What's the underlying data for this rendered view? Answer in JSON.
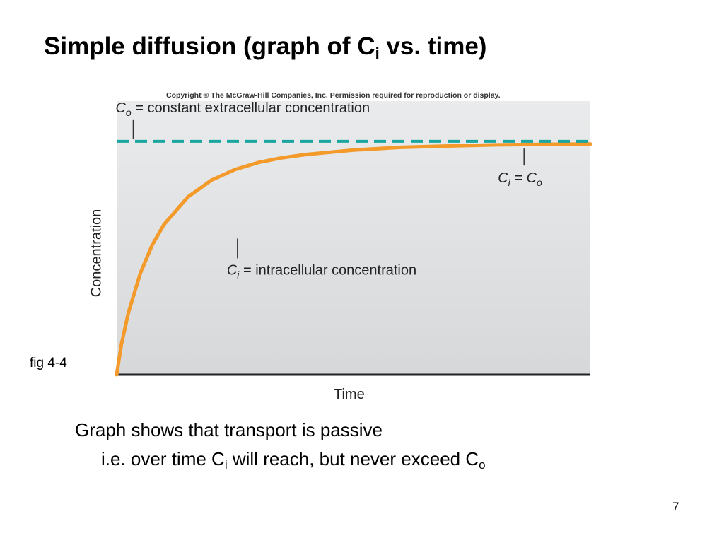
{
  "slide": {
    "title_main": "Simple diffusion (graph of C",
    "title_sub": "i",
    "title_end": " vs. time)",
    "copyright": "Copyright © The McGraw-Hill Companies, Inc. Permission required for reproduction or display.",
    "fig_label": "fig 4-4",
    "caption_line1": "Graph shows that transport is passive",
    "caption_line2_a": "i.e. over time C",
    "caption_line2_sub1": "i",
    "caption_line2_b": " will reach, but never exceed C",
    "caption_line2_sub2": "o",
    "page_number": "7"
  },
  "chart_data": {
    "type": "line",
    "title": "",
    "xlabel": "Time",
    "ylabel": "Concentration",
    "xlim": [
      0,
      10
    ],
    "ylim": [
      0,
      1.0
    ],
    "grid": false,
    "series": [
      {
        "name": "Ci",
        "style": "solid",
        "color": "#f39a2b",
        "x": [
          0,
          0.1,
          0.25,
          0.5,
          0.75,
          1,
          1.5,
          2,
          2.5,
          3,
          3.5,
          4,
          5,
          6,
          7,
          8,
          9,
          10
        ],
        "y": [
          0,
          0.111,
          0.228,
          0.371,
          0.474,
          0.549,
          0.649,
          0.711,
          0.75,
          0.776,
          0.793,
          0.805,
          0.821,
          0.831,
          0.836,
          0.84,
          0.842,
          0.843
        ]
      },
      {
        "name": "Co",
        "style": "dashed",
        "color": "#1aa6a0",
        "x": [
          0,
          10
        ],
        "y": [
          0.853,
          0.853
        ]
      }
    ],
    "annotations": [
      {
        "symbol": "C",
        "sub": "o",
        "text": "= constant extracellular concentration",
        "x": 0.35,
        "y": 0.853
      },
      {
        "symbol": "C",
        "sub": "i",
        "text": "= intracellular concentration",
        "x": 2.55,
        "y": 0.508
      },
      {
        "symbol": "C",
        "sub": "i",
        "text": "= C",
        "sub2": "o",
        "x": 8.6,
        "y": 0.842
      }
    ],
    "colors": {
      "plot_bg_top": "#e9ebec",
      "plot_bg_bottom": "#d6d8da",
      "axis": "#222222",
      "leader": "#333333"
    }
  }
}
